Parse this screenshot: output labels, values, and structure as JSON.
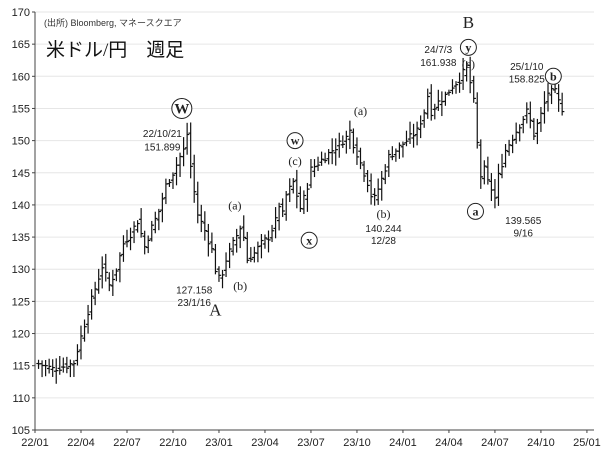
{
  "chart_data": {
    "type": "ohlc",
    "title": "米ドル/円　週足",
    "source": "(出所) Bloomberg, マネースクエア",
    "ylim": [
      105,
      170
    ],
    "y_ticks": [
      105,
      110,
      115,
      120,
      125,
      130,
      135,
      140,
      145,
      150,
      155,
      160,
      165,
      170
    ],
    "x_ticks": [
      "22/01",
      "22/04",
      "22/07",
      "22/10",
      "23/01",
      "23/04",
      "23/07",
      "23/10",
      "24/01",
      "24/04",
      "24/07",
      "24/10",
      "25/01"
    ],
    "x_tick_index": [
      0,
      13,
      26,
      39,
      52,
      65,
      78,
      91,
      104,
      117,
      130,
      143,
      156
    ],
    "close_path": [
      [
        0,
        115.3
      ],
      [
        4,
        114.5
      ],
      [
        8,
        115.0
      ],
      [
        10,
        115.5
      ],
      [
        12,
        119.5
      ],
      [
        14,
        123.5
      ],
      [
        16,
        127.0
      ],
      [
        18,
        130.5
      ],
      [
        20,
        127.5
      ],
      [
        22,
        130.0
      ],
      [
        24,
        134.0
      ],
      [
        26,
        135.5
      ],
      [
        28,
        137.5
      ],
      [
        30,
        133.5
      ],
      [
        32,
        136.5
      ],
      [
        34,
        139.0
      ],
      [
        36,
        143.0
      ],
      [
        38,
        145.0
      ],
      [
        40,
        147.5
      ],
      [
        41,
        148.5
      ],
      [
        42,
        151.0
      ],
      [
        43,
        146.0
      ],
      [
        44,
        142.0
      ],
      [
        45,
        138.5
      ],
      [
        47,
        136.0
      ],
      [
        49,
        133.0
      ],
      [
        50,
        130.0
      ],
      [
        51,
        128.5
      ],
      [
        52,
        129.5
      ],
      [
        53,
        131.5
      ],
      [
        55,
        134.0
      ],
      [
        57,
        136.5
      ],
      [
        58,
        135.0
      ],
      [
        59,
        131.5
      ],
      [
        61,
        132.5
      ],
      [
        63,
        134.0
      ],
      [
        65,
        135.0
      ],
      [
        67,
        137.5
      ],
      [
        68,
        140.0
      ],
      [
        69,
        138.5
      ],
      [
        70,
        141.5
      ],
      [
        72,
        143.5
      ],
      [
        74,
        139.5
      ],
      [
        75,
        141.0
      ],
      [
        76,
        143.0
      ],
      [
        77,
        145.5
      ],
      [
        79,
        146.5
      ],
      [
        81,
        147.5
      ],
      [
        83,
        148.5
      ],
      [
        85,
        149.5
      ],
      [
        87,
        150.5
      ],
      [
        88,
        151.5
      ],
      [
        89,
        149.5
      ],
      [
        91,
        146.5
      ],
      [
        93,
        143.5
      ],
      [
        94,
        141.5
      ],
      [
        95,
        141.0
      ],
      [
        97,
        144.0
      ],
      [
        99,
        147.5
      ],
      [
        101,
        148.5
      ],
      [
        103,
        149.5
      ],
      [
        105,
        150.5
      ],
      [
        107,
        151.5
      ],
      [
        109,
        154.5
      ],
      [
        110,
        157.0
      ],
      [
        111,
        154.5
      ],
      [
        113,
        156.0
      ],
      [
        115,
        157.0
      ],
      [
        117,
        158.5
      ],
      [
        119,
        159.5
      ],
      [
        120,
        160.5
      ],
      [
        121,
        161.5
      ],
      [
        122,
        159.0
      ],
      [
        123,
        156.0
      ],
      [
        124,
        149.5
      ],
      [
        125,
        144.5
      ],
      [
        126,
        145.5
      ],
      [
        127,
        143.5
      ],
      [
        128,
        142.5
      ],
      [
        129,
        141.0
      ],
      [
        130,
        144.5
      ],
      [
        132,
        148.5
      ],
      [
        134,
        150.5
      ],
      [
        136,
        152.5
      ],
      [
        138,
        154.5
      ],
      [
        139,
        153.0
      ],
      [
        140,
        151.0
      ],
      [
        142,
        154.0
      ],
      [
        144,
        157.5
      ],
      [
        146,
        157.5
      ],
      [
        147,
        156.0
      ],
      [
        148,
        155.0
      ]
    ],
    "annotations": [
      {
        "label": "W",
        "style": "circle-big",
        "x": 41.5,
        "y": 155.0
      },
      {
        "label": "22/10/21",
        "style": "note",
        "x": 36,
        "y": 150.6
      },
      {
        "label": "151.899",
        "style": "note",
        "x": 36,
        "y": 148.5
      },
      {
        "label": "(a)",
        "style": "wave",
        "x": 56.5,
        "y": 139.3
      },
      {
        "label": "(b)",
        "style": "wave",
        "x": 58.0,
        "y": 126.8
      },
      {
        "label": "127.158",
        "style": "note",
        "x": 45,
        "y": 126.2
      },
      {
        "label": "23/1/16",
        "style": "note",
        "x": 45,
        "y": 124.3
      },
      {
        "label": "A",
        "style": "wave-big",
        "x": 51,
        "y": 122.8
      },
      {
        "label": "w",
        "style": "circle",
        "x": 73.5,
        "y": 150.0
      },
      {
        "label": "(c)",
        "style": "wave",
        "x": 73.5,
        "y": 146.2
      },
      {
        "label": "x",
        "style": "circle",
        "x": 77.5,
        "y": 134.5
      },
      {
        "label": "(a)",
        "style": "wave",
        "x": 92,
        "y": 154.0
      },
      {
        "label": "(b)",
        "style": "wave",
        "x": 98.5,
        "y": 138.0
      },
      {
        "label": "140.244",
        "style": "note",
        "x": 98.5,
        "y": 135.8
      },
      {
        "label": "12/28",
        "style": "note",
        "x": 98.5,
        "y": 133.9
      },
      {
        "label": "B",
        "style": "wave-big",
        "x": 122.5,
        "y": 167.5
      },
      {
        "label": "y",
        "style": "circle",
        "x": 122.5,
        "y": 164.5
      },
      {
        "label": "(c)",
        "style": "wave",
        "x": 122.5,
        "y": 161.3
      },
      {
        "label": "24/7/3",
        "style": "note",
        "x": 114,
        "y": 163.6
      },
      {
        "label": "161.938",
        "style": "note",
        "x": 114,
        "y": 161.6
      },
      {
        "label": "a",
        "style": "circle",
        "x": 124.5,
        "y": 139.0
      },
      {
        "label": "139.565",
        "style": "note",
        "x": 138,
        "y": 137.0
      },
      {
        "label": "9/16",
        "style": "note",
        "x": 138,
        "y": 135.1
      },
      {
        "label": "25/1/10",
        "style": "note",
        "x": 139,
        "y": 161.0
      },
      {
        "label": "158.825",
        "style": "note",
        "x": 139,
        "y": 159.0
      },
      {
        "label": "b",
        "style": "circle",
        "x": 146.5,
        "y": 160.0
      }
    ]
  }
}
